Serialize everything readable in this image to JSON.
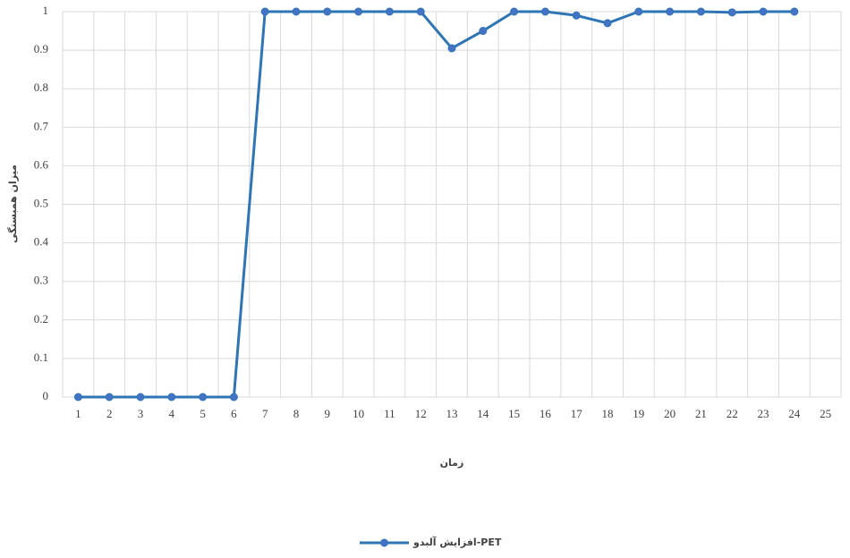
{
  "chart_data": {
    "type": "line",
    "x_label": "زمان",
    "y_label": "میزان همبستگی",
    "categories": [
      "1",
      "2",
      "3",
      "4",
      "5",
      "6",
      "7",
      "8",
      "9",
      "10",
      "11",
      "12",
      "13",
      "14",
      "15",
      "16",
      "17",
      "18",
      "19",
      "20",
      "21",
      "22",
      "23",
      "24",
      "25"
    ],
    "series": [
      {
        "name": "افزایش آلبدو-PET",
        "color": "#2e75b6",
        "values": [
          0,
          0,
          0,
          0,
          0,
          0,
          1,
          1,
          1,
          1,
          1,
          1,
          0.905,
          0.95,
          1,
          1,
          0.99,
          0.97,
          1,
          1,
          1,
          0.998,
          1,
          1,
          null
        ]
      }
    ],
    "ylim": [
      0,
      1
    ],
    "yticks": [
      0,
      0.1,
      0.2,
      0.3,
      0.4,
      0.5,
      0.6,
      0.7,
      0.8,
      0.9,
      1
    ],
    "grid": true
  }
}
